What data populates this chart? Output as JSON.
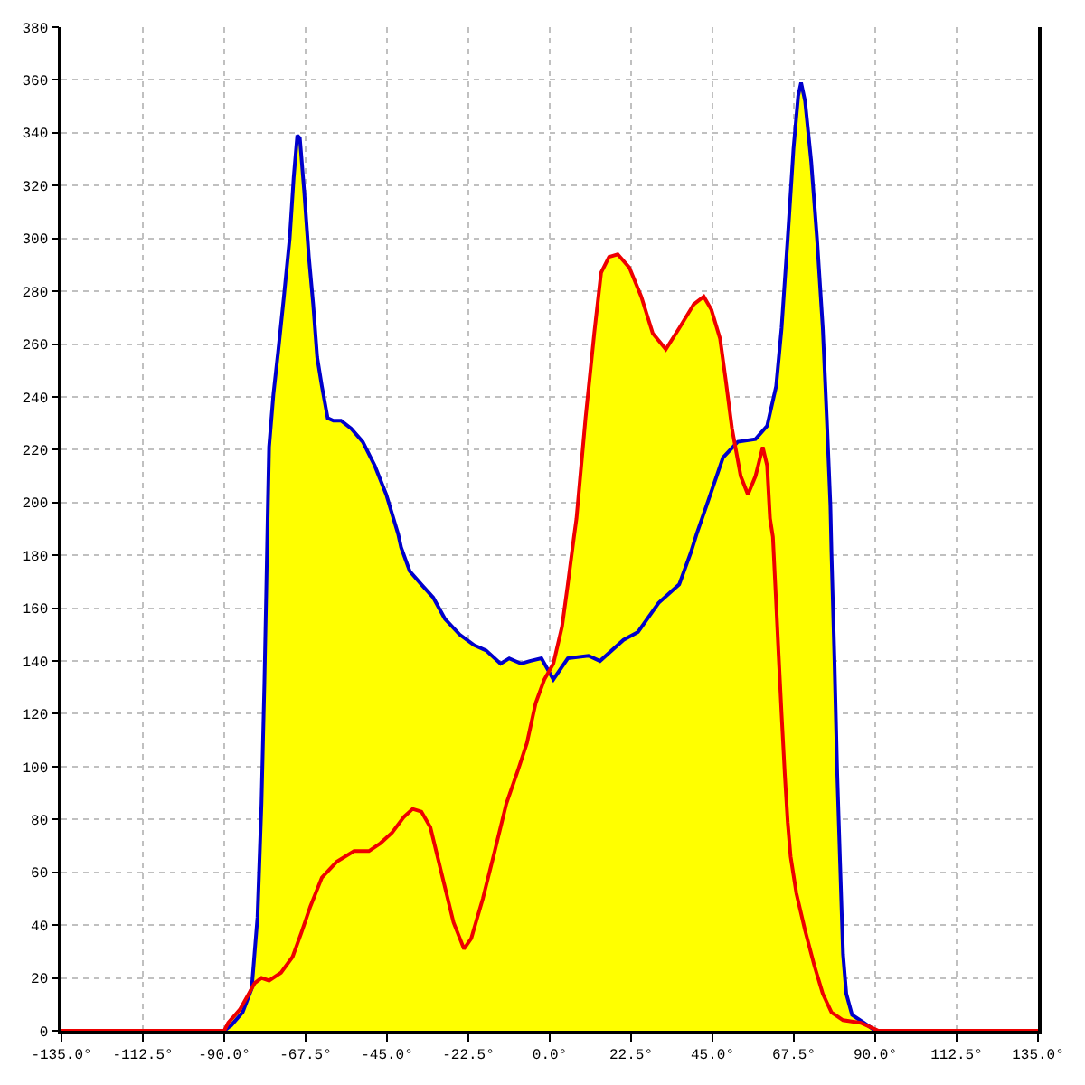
{
  "chart_data": {
    "type": "line",
    "color": "#ffff00",
    "series": [
      {
        "color": "#0000cc",
        "x": [
          -90,
          -88.1,
          -84.9,
          -82.4,
          -80.8,
          -79.7,
          -78.9,
          -78.4,
          -77.9,
          -77.6,
          -76.4,
          -75.1,
          -73.5,
          -71.9,
          -70.8,
          -69.8,
          -69.1,
          -67.9,
          -66.6,
          -65.4,
          -64.3,
          -63.0,
          -61.4,
          -59.8,
          -57.7,
          -54.9,
          -51.7,
          -48.4,
          -45.2,
          -41.9,
          -41.1,
          -38.7,
          -35.5,
          -32.2,
          -29.0,
          -24.9,
          -20.9,
          -17.6,
          -13.6,
          -11.2,
          -7.9,
          -5.5,
          -2.3,
          1.0,
          5.0,
          10.7,
          13.9,
          20.4,
          24.4,
          30.1,
          35.8,
          39.0,
          40.6,
          43.9,
          47.9,
          52.0,
          56.9,
          60.1,
          62.6,
          64.1,
          65.8,
          67.4,
          68.7,
          69.5,
          70.6,
          72.3,
          73.9,
          75.5,
          76.6,
          77.6,
          77.9,
          78.7,
          79.5,
          80.3,
          81.1,
          82.0,
          83.6,
          86.9,
          90.0
        ],
        "values": [
          0,
          2,
          7,
          16,
          43,
          86,
          131,
          165,
          201,
          221,
          241,
          257,
          278,
          300,
          323,
          339,
          338,
          318,
          293,
          275,
          255,
          244,
          232,
          231,
          231,
          228,
          223,
          214,
          203,
          188,
          183,
          174,
          169,
          164,
          156,
          150,
          146,
          144,
          139,
          141,
          139,
          140,
          141,
          133,
          141,
          142,
          140,
          148,
          151,
          162,
          169,
          181,
          188,
          201,
          217,
          223,
          224,
          229,
          244,
          266,
          300,
          334,
          354,
          359,
          352,
          329,
          300,
          266,
          232,
          199,
          181,
          142,
          97,
          63,
          29,
          14,
          6,
          3,
          0
        ]
      },
      {
        "color": "#ee0000",
        "x": [
          -135,
          -90,
          -88.9,
          -85.7,
          -83.2,
          -81.6,
          -79.7,
          -77.6,
          -74.3,
          -71.1,
          -68.7,
          -66.2,
          -63.0,
          -58.9,
          -54.1,
          -50.0,
          -46.8,
          -43.6,
          -40.3,
          -37.9,
          -35.5,
          -33.0,
          -29.8,
          -26.6,
          -23.7,
          -21.7,
          -18.5,
          -15.2,
          -12.0,
          -8.7,
          -6.3,
          -3.9,
          -1.5,
          1.0,
          3.4,
          5.0,
          6.7,
          7.4,
          9.9,
          12.3,
          14.2,
          16.4,
          18.8,
          22.0,
          25.3,
          28.5,
          32.1,
          35.8,
          39.8,
          42.6,
          44.7,
          47.1,
          48.7,
          50.4,
          52.8,
          54.8,
          56.9,
          58.9,
          60.1,
          60.9,
          61.7,
          62.5,
          63.3,
          64.1,
          65.0,
          65.8,
          66.6,
          68.2,
          70.6,
          73.1,
          75.5,
          77.9,
          81.1,
          86.0,
          89.3,
          90.9,
          135
        ],
        "values": [
          0,
          0,
          3,
          8,
          14,
          18,
          20,
          19,
          22,
          28,
          37,
          47,
          58,
          64,
          68,
          68,
          71,
          75,
          81,
          84,
          83,
          77,
          59,
          41,
          31,
          35,
          50,
          68,
          86,
          99,
          109,
          124,
          133,
          139,
          153,
          169,
          187,
          194,
          232,
          264,
          287,
          293,
          294,
          289,
          278,
          264,
          258,
          266,
          275,
          278,
          273,
          262,
          246,
          228,
          210,
          203,
          210,
          221,
          214,
          194,
          187,
          165,
          142,
          120,
          97,
          79,
          66,
          52,
          38,
          25,
          14,
          7,
          4,
          3,
          1,
          0,
          0
        ]
      }
    ],
    "xlim": [
      -135,
      135
    ],
    "xticks": [
      {
        "value": -135,
        "label": "-135.0°"
      },
      {
        "value": -112.5,
        "label": "-112.5°"
      },
      {
        "value": -90,
        "label": "-90.0°"
      },
      {
        "value": -67.5,
        "label": "-67.5°"
      },
      {
        "value": -45,
        "label": "-45.0°"
      },
      {
        "value": -22.5,
        "label": "-22.5°"
      },
      {
        "value": 0,
        "label": "0.0°"
      },
      {
        "value": 22.5,
        "label": "22.5°"
      },
      {
        "value": 45,
        "label": "45.0°"
      },
      {
        "value": 67.5,
        "label": "67.5°"
      },
      {
        "value": 90,
        "label": "90.0°"
      },
      {
        "value": 112.5,
        "label": "112.5°"
      },
      {
        "value": 135,
        "label": "135.0°"
      }
    ],
    "ylim": [
      0,
      380
    ],
    "yticks": [
      0,
      20,
      40,
      60,
      80,
      100,
      120,
      140,
      160,
      180,
      200,
      220,
      240,
      260,
      280,
      300,
      320,
      340,
      360,
      380
    ],
    "grid": true,
    "marker": "none",
    "line_style": "solid"
  }
}
